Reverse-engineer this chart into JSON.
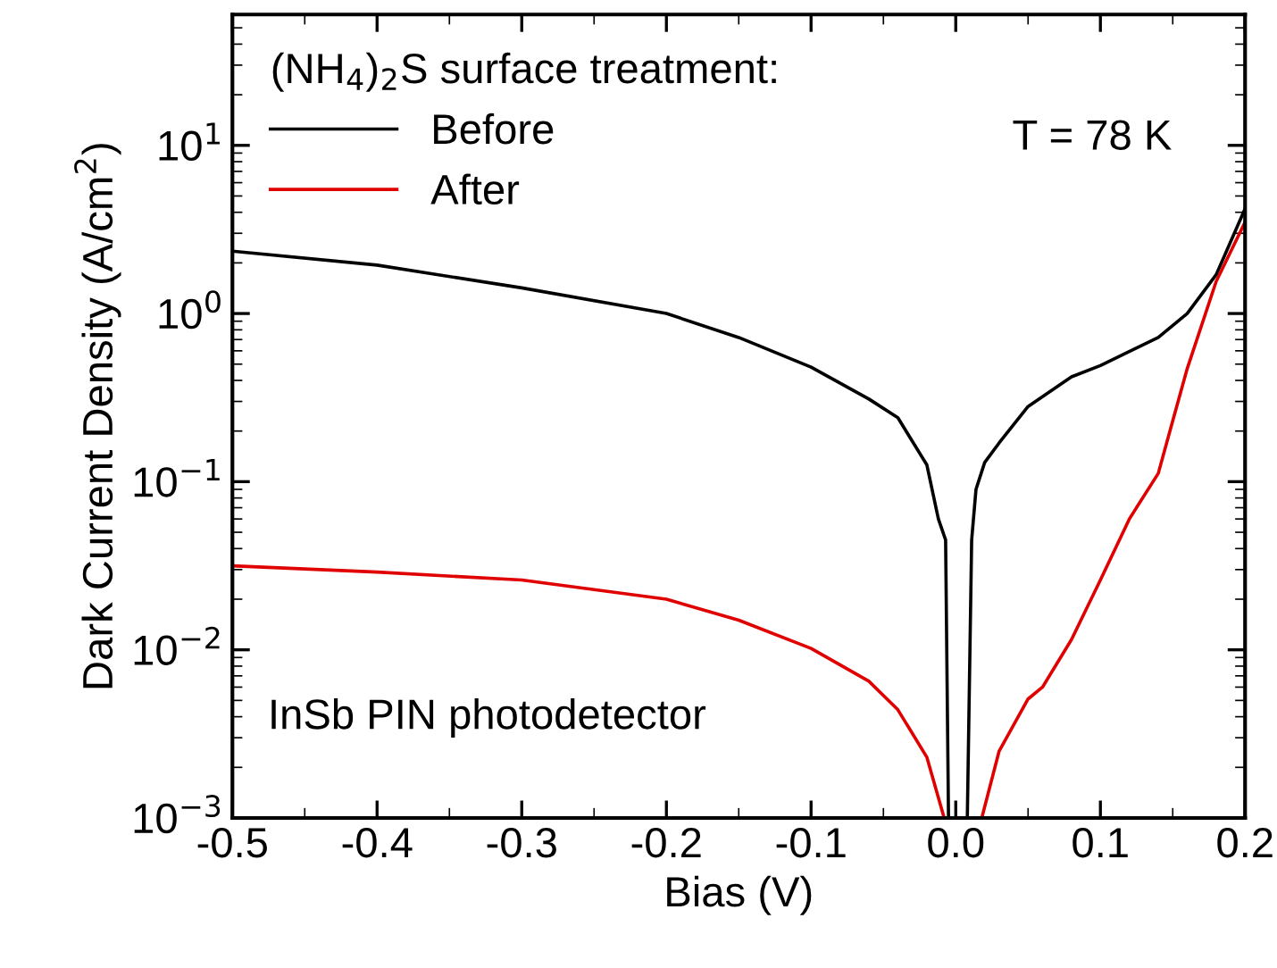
{
  "chart_data": {
    "type": "line",
    "xlabel": "Bias (V)",
    "ylabel": "Dark Current Density (A/cm$^{2}$)",
    "legend_title": "(NH$_{4}$)$_{2}$S surface treatment:",
    "log": "y",
    "xlim": [
      -0.5,
      0.2
    ],
    "xticks": [
      -0.5,
      -0.4,
      -0.3,
      -0.2,
      -0.1,
      {
        "value": 0.0,
        "label": "0.0"
      },
      0.1,
      0.2
    ],
    "ylim": [
      0.001,
      60
    ],
    "yticks": [
      {
        "value": 0.001,
        "label": "10$^{−3}$"
      },
      {
        "value": 0.01,
        "label": "10$^{−2}$"
      },
      {
        "value": 0.1,
        "label": "10$^{−1}$"
      },
      {
        "value": 1,
        "label": "10$^{0}$"
      },
      {
        "value": 10,
        "label": "10$^{1}$"
      }
    ],
    "grid": false,
    "legend": "top left",
    "marker": "none",
    "line_style": "solid",
    "annotations": [
      "T = 78 K",
      "InSb PIN photodetector"
    ],
    "series": [
      {
        "name": "Before",
        "color": "#000000",
        "x": [
          -0.5,
          -0.4,
          -0.3,
          -0.2,
          -0.15,
          -0.1,
          -0.06,
          -0.04,
          -0.02,
          -0.012,
          -0.007,
          -0.005,
          0.008,
          0.011,
          0.014,
          0.02,
          0.03,
          0.05,
          0.08,
          0.1,
          0.14,
          0.16,
          0.18,
          0.2
        ],
        "values": [
          2.35,
          1.94,
          1.42,
          1.0,
          0.72,
          0.48,
          0.31,
          0.24,
          0.126,
          0.06,
          0.045,
          0.001,
          0.001,
          0.045,
          0.09,
          0.13,
          0.17,
          0.28,
          0.42,
          0.49,
          0.72,
          1.0,
          1.7,
          4.2
        ]
      },
      {
        "name": "After",
        "color": "#e00000",
        "x": [
          -0.5,
          -0.4,
          -0.3,
          -0.2,
          -0.15,
          -0.1,
          -0.06,
          -0.04,
          -0.02,
          -0.008,
          0.018,
          0.03,
          0.05,
          0.06,
          0.08,
          0.1,
          0.12,
          0.14,
          0.15,
          0.16,
          0.18,
          0.2
        ],
        "values": [
          0.0316,
          0.029,
          0.026,
          0.02,
          0.015,
          0.0102,
          0.0065,
          0.0044,
          0.0023,
          0.001,
          0.001,
          0.0025,
          0.0051,
          0.006,
          0.0115,
          0.026,
          0.06,
          0.112,
          0.23,
          0.47,
          1.55,
          3.5
        ]
      }
    ]
  }
}
